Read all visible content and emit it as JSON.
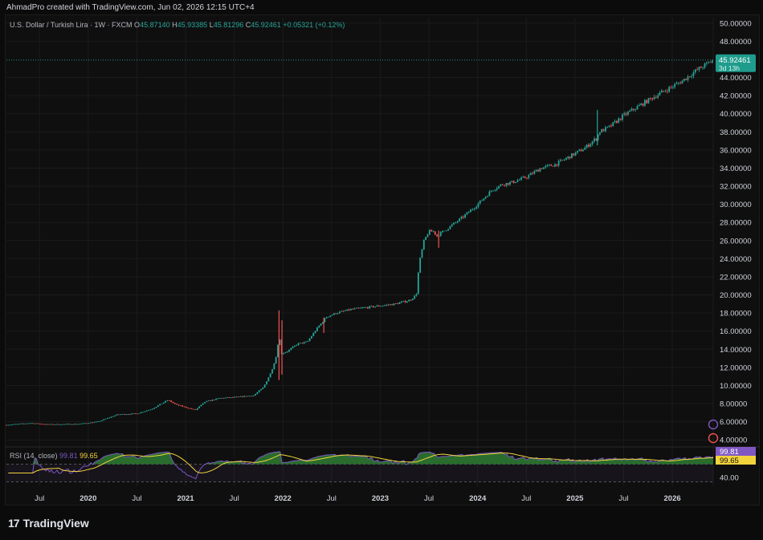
{
  "header": {
    "publish_text": "AhmadPro created with TradingView.com, Jun 02, 2026 12:15 UTC+4"
  },
  "legend": {
    "symbol": "U.S. Dollar / Turkish Lira · 1W · FXCM",
    "open_label": "O",
    "open": "45.87140",
    "high_label": "H",
    "high": "45.93385",
    "low_label": "L",
    "low": "45.81296",
    "close_label": "C",
    "close": "45.92461",
    "change": "+0.05321 (+0.12%)"
  },
  "price_tag": {
    "value": "45.92461",
    "countdown": "3d 13h"
  },
  "rsi_legend": {
    "label": "RSI (14, close)",
    "value1": "99.81",
    "value2": "99.65"
  },
  "rsi_tags": {
    "value1": "99.81",
    "value2": "99.65",
    "level": "40.00"
  },
  "branding": {
    "logo_text": "TradingView",
    "logo_mark": "17"
  },
  "colors": {
    "up": "#26a69a",
    "down": "#ef5350",
    "rsi": "#7e57c2",
    "rsi_ma": "#f2d33c",
    "rsi_fill": "#2e7d32"
  },
  "chart_data": {
    "type": "candlestick",
    "title": "U.S. Dollar / Turkish Lira · 1W · FXCM",
    "ylim": [
      3.4,
      50.6
    ],
    "y_ticks": [
      "50.00000",
      "48.00000",
      "44.00000",
      "42.00000",
      "40.00000",
      "38.00000",
      "36.00000",
      "34.00000",
      "32.00000",
      "30.00000",
      "28.00000",
      "26.00000",
      "24.00000",
      "22.00000",
      "20.00000",
      "18.00000",
      "16.00000",
      "14.00000",
      "12.00000",
      "10.00000",
      "8.00000",
      "6.00000",
      "4.00000"
    ],
    "x_ticks": [
      {
        "label": "Jul",
        "t": 2019.5,
        "bold": false
      },
      {
        "label": "2020",
        "t": 2020.0,
        "bold": true
      },
      {
        "label": "Jul",
        "t": 2020.5,
        "bold": false
      },
      {
        "label": "2021",
        "t": 2021.0,
        "bold": true
      },
      {
        "label": "Jul",
        "t": 2021.5,
        "bold": false
      },
      {
        "label": "2022",
        "t": 2022.0,
        "bold": true
      },
      {
        "label": "Jul",
        "t": 2022.5,
        "bold": false
      },
      {
        "label": "2023",
        "t": 2023.0,
        "bold": true
      },
      {
        "label": "Jul",
        "t": 2023.5,
        "bold": false
      },
      {
        "label": "2024",
        "t": 2024.0,
        "bold": true
      },
      {
        "label": "Jul",
        "t": 2024.5,
        "bold": false
      },
      {
        "label": "2025",
        "t": 2025.0,
        "bold": true
      },
      {
        "label": "Jul",
        "t": 2025.5,
        "bold": false
      },
      {
        "label": "2026",
        "t": 2026.0,
        "bold": true
      }
    ],
    "x_range": [
      2019.16,
      2026.42
    ],
    "anchors": [
      [
        2019.16,
        5.65
      ],
      [
        2019.4,
        5.85
      ],
      [
        2019.6,
        5.7
      ],
      [
        2019.9,
        5.75
      ],
      [
        2020.1,
        6.0
      ],
      [
        2020.3,
        6.8
      ],
      [
        2020.5,
        6.9
      ],
      [
        2020.65,
        7.4
      ],
      [
        2020.82,
        8.4
      ],
      [
        2020.9,
        7.9
      ],
      [
        2021.1,
        7.3
      ],
      [
        2021.2,
        8.2
      ],
      [
        2021.35,
        8.6
      ],
      [
        2021.5,
        8.7
      ],
      [
        2021.7,
        8.9
      ],
      [
        2021.8,
        9.8
      ],
      [
        2021.88,
        11.5
      ],
      [
        2021.94,
        13.5
      ],
      [
        2021.96,
        16.0
      ],
      [
        2021.98,
        13.5
      ],
      [
        2022.05,
        13.8
      ],
      [
        2022.15,
        14.6
      ],
      [
        2022.25,
        14.8
      ],
      [
        2022.35,
        16.3
      ],
      [
        2022.45,
        17.6
      ],
      [
        2022.55,
        18.0
      ],
      [
        2022.7,
        18.4
      ],
      [
        2022.85,
        18.6
      ],
      [
        2023.0,
        18.8
      ],
      [
        2023.15,
        19.0
      ],
      [
        2023.3,
        19.4
      ],
      [
        2023.37,
        20.0
      ],
      [
        2023.4,
        23.5
      ],
      [
        2023.45,
        26.0
      ],
      [
        2023.5,
        27.0
      ],
      [
        2023.55,
        27.0
      ],
      [
        2023.58,
        26.5
      ],
      [
        2023.7,
        27.4
      ],
      [
        2023.85,
        28.6
      ],
      [
        2024.0,
        30.0
      ],
      [
        2024.15,
        31.6
      ],
      [
        2024.25,
        32.2
      ],
      [
        2024.35,
        32.4
      ],
      [
        2024.5,
        33.0
      ],
      [
        2024.65,
        34.0
      ],
      [
        2024.8,
        34.4
      ],
      [
        2024.95,
        35.3
      ],
      [
        2025.1,
        36.2
      ],
      [
        2025.22,
        37.3
      ],
      [
        2025.25,
        38.0
      ],
      [
        2025.35,
        38.5
      ],
      [
        2025.5,
        39.8
      ],
      [
        2025.65,
        40.8
      ],
      [
        2025.8,
        41.8
      ],
      [
        2025.95,
        42.7
      ],
      [
        2026.1,
        43.6
      ],
      [
        2026.25,
        44.8
      ],
      [
        2026.42,
        45.92
      ]
    ],
    "spikes": [
      {
        "t": 2021.96,
        "high": 18.3,
        "low": 10.6
      },
      {
        "t": 2021.99,
        "high": 17.2,
        "low": 11.2
      },
      {
        "t": 2023.6,
        "high": 27.1,
        "low": 25.2
      },
      {
        "t": 2025.23,
        "high": 40.4,
        "low": 36.5
      },
      {
        "t": 2022.42,
        "high": 17.5,
        "low": 15.8
      }
    ],
    "last_close": 45.92461,
    "rsi": {
      "ylim": [
        20,
        100
      ],
      "level": 40
    }
  }
}
